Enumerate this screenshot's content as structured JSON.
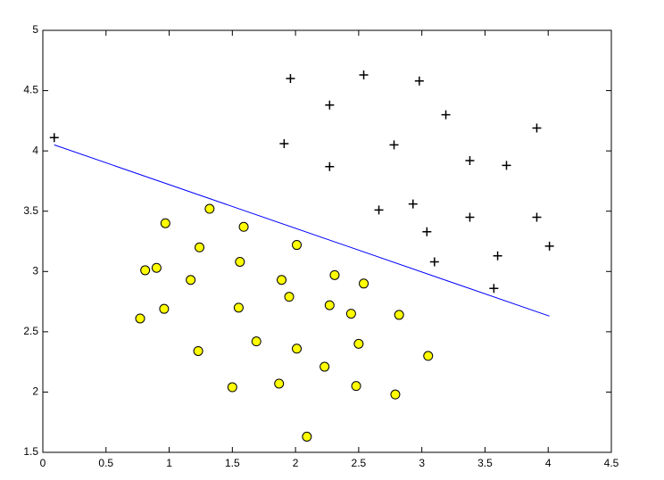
{
  "chart_data": {
    "type": "scatter",
    "xlim": [
      0,
      4.5
    ],
    "ylim": [
      1.5,
      5
    ],
    "xticks": [
      0,
      0.5,
      1,
      1.5,
      2,
      2.5,
      3,
      3.5,
      4,
      4.5
    ],
    "yticks": [
      1.5,
      2,
      2.5,
      3,
      3.5,
      4,
      4.5,
      5
    ],
    "grid": false,
    "series": [
      {
        "mode": "plus",
        "color": "#000000",
        "x": [
          0.09,
          1.96,
          2.54,
          2.98,
          2.27,
          3.19,
          3.91,
          1.91,
          2.78,
          2.27,
          3.38,
          3.67,
          2.66,
          2.93,
          3.38,
          3.91,
          3.04,
          4.01,
          3.6,
          3.1,
          3.57
        ],
        "y": [
          4.11,
          4.6,
          4.63,
          4.58,
          4.38,
          4.3,
          4.19,
          4.06,
          4.05,
          3.87,
          3.92,
          3.88,
          3.51,
          3.56,
          3.45,
          3.45,
          3.33,
          3.21,
          3.13,
          3.08,
          2.86
        ]
      },
      {
        "mode": "circle",
        "color": "#ffff00",
        "x": [
          1.32,
          0.97,
          1.59,
          1.24,
          2.01,
          0.81,
          0.9,
          1.56,
          1.17,
          1.89,
          2.31,
          2.54,
          1.95,
          0.96,
          1.55,
          2.27,
          2.44,
          2.82,
          0.77,
          1.69,
          2.01,
          2.5,
          1.23,
          3.05,
          2.23,
          1.5,
          1.87,
          2.48,
          2.79,
          2.09
        ],
        "y": [
          3.52,
          3.4,
          3.37,
          3.2,
          3.22,
          3.01,
          3.03,
          3.08,
          2.93,
          2.93,
          2.97,
          2.9,
          2.79,
          2.69,
          2.7,
          2.72,
          2.65,
          2.64,
          2.61,
          2.42,
          2.36,
          2.4,
          2.34,
          2.3,
          2.21,
          2.04,
          2.07,
          2.05,
          1.98,
          1.63
        ]
      },
      {
        "mode": "line",
        "color": "#0000ff",
        "x": [
          0.09,
          4.01
        ],
        "y": [
          4.05,
          2.63
        ]
      }
    ]
  }
}
